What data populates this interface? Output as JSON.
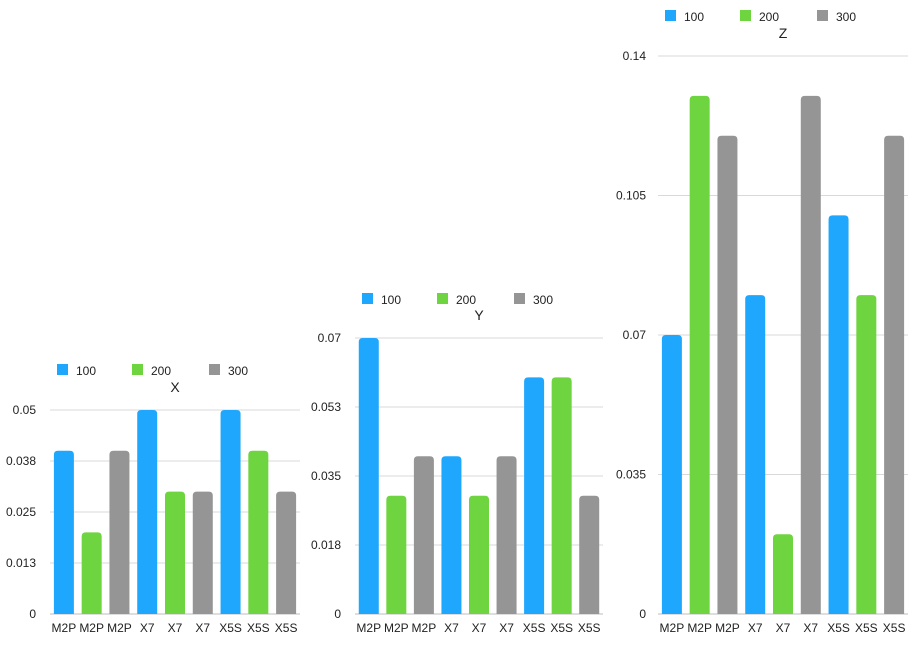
{
  "chart_data": [
    {
      "type": "bar",
      "title": "X",
      "categories": [
        "M2P",
        "M2P",
        "M2P",
        "X7",
        "X7",
        "X7",
        "X5S",
        "X5S",
        "X5S"
      ],
      "bar_series": [
        "100",
        "200",
        "300",
        "100",
        "200",
        "300",
        "100",
        "200",
        "300"
      ],
      "values": [
        0.04,
        0.02,
        0.04,
        0.05,
        0.03,
        0.03,
        0.05,
        0.04,
        0.03
      ],
      "legend": [
        {
          "name": "100",
          "color": "#1EA7FD"
        },
        {
          "name": "200",
          "color": "#6ED43F"
        },
        {
          "name": "300",
          "color": "#959595"
        }
      ],
      "yticks": [
        "0",
        "0.013",
        "0.025",
        "0.038",
        "0.05"
      ],
      "ylim": [
        0,
        0.05
      ],
      "grid": true,
      "legend_position": "top-left"
    },
    {
      "type": "bar",
      "title": "Y",
      "categories": [
        "M2P",
        "M2P",
        "M2P",
        "X7",
        "X7",
        "X7",
        "X5S",
        "X5S",
        "X5S"
      ],
      "bar_series": [
        "100",
        "200",
        "300",
        "100",
        "200",
        "300",
        "100",
        "200",
        "300"
      ],
      "values": [
        0.07,
        0.03,
        0.04,
        0.04,
        0.03,
        0.04,
        0.06,
        0.06,
        0.03
      ],
      "legend": [
        {
          "name": "100",
          "color": "#1EA7FD"
        },
        {
          "name": "200",
          "color": "#6ED43F"
        },
        {
          "name": "300",
          "color": "#959595"
        }
      ],
      "yticks": [
        "0",
        "0.018",
        "0.035",
        "0.053",
        "0.07"
      ],
      "ylim": [
        0,
        0.07
      ],
      "grid": true,
      "legend_position": "top-left"
    },
    {
      "type": "bar",
      "title": "Z",
      "categories": [
        "M2P",
        "M2P",
        "M2P",
        "X7",
        "X7",
        "X7",
        "X5S",
        "X5S",
        "X5S"
      ],
      "bar_series": [
        "100",
        "200",
        "300",
        "100",
        "200",
        "300",
        "100",
        "200",
        "300"
      ],
      "values": [
        0.07,
        0.13,
        0.12,
        0.08,
        0.02,
        0.13,
        0.1,
        0.08,
        0.12
      ],
      "legend": [
        {
          "name": "100",
          "color": "#1EA7FD"
        },
        {
          "name": "200",
          "color": "#6ED43F"
        },
        {
          "name": "300",
          "color": "#959595"
        }
      ],
      "yticks": [
        "0",
        "0.035",
        "0.07",
        "0.105",
        "0.14"
      ],
      "ylim": [
        0,
        0.14
      ],
      "grid": true,
      "legend_position": "top-left"
    }
  ]
}
